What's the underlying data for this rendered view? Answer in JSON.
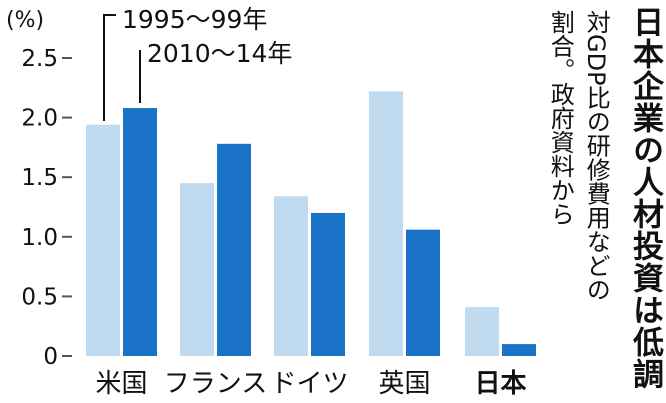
{
  "title": "日本企業の人材投資は低調",
  "subtitle": [
    "対GDP比の研修費用などの",
    "割合。政府資料から"
  ],
  "chart_data": {
    "type": "bar",
    "unit": "(%)",
    "categories": [
      "米国",
      "フランス",
      "ドイツ",
      "英国",
      "日本"
    ],
    "series": [
      {
        "name": "1995〜99年",
        "values": [
          1.94,
          1.45,
          1.34,
          2.22,
          0.41
        ]
      },
      {
        "name": "2010〜14年",
        "values": [
          2.08,
          1.78,
          1.2,
          1.06,
          0.1
        ]
      }
    ],
    "yticks": [
      "0",
      "0.5",
      "1.0",
      "1.5",
      "2.0",
      "2.5"
    ],
    "ylim": [
      0,
      2.5
    ],
    "grid": false,
    "legend": "top-left",
    "colors": {
      "series1": "#c0daf0",
      "series2": "#1a73c6",
      "axis": "#555555"
    }
  }
}
